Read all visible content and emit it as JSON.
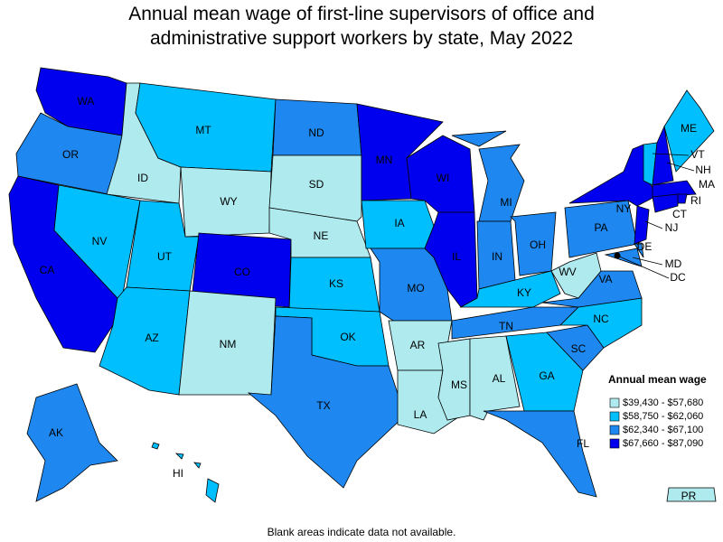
{
  "title": "Annual mean wage of first-line supervisors of office and administrative support workers by state, May 2022",
  "legend": {
    "title": "Annual mean wage",
    "items": [
      {
        "label": "$39,430 - $57,680",
        "color": "#aeeaee"
      },
      {
        "label": "$58,750 - $62,060",
        "color": "#00bfff"
      },
      {
        "label": "$62,340 - $67,100",
        "color": "#1e88f0"
      },
      {
        "label": "$67,660 - $87,090",
        "color": "#0000ee"
      }
    ]
  },
  "states": [
    {
      "abbr": "WA",
      "color": "#0000ee"
    },
    {
      "abbr": "OR",
      "color": "#1e88f0"
    },
    {
      "abbr": "CA",
      "color": "#0000ee"
    },
    {
      "abbr": "ID",
      "color": "#aeeaee"
    },
    {
      "abbr": "NV",
      "color": "#00bfff"
    },
    {
      "abbr": "UT",
      "color": "#00bfff"
    },
    {
      "abbr": "AZ",
      "color": "#00bfff"
    },
    {
      "abbr": "MT",
      "color": "#00bfff"
    },
    {
      "abbr": "WY",
      "color": "#aeeaee"
    },
    {
      "abbr": "CO",
      "color": "#0000ee"
    },
    {
      "abbr": "NM",
      "color": "#aeeaee"
    },
    {
      "abbr": "ND",
      "color": "#1e88f0"
    },
    {
      "abbr": "SD",
      "color": "#aeeaee"
    },
    {
      "abbr": "NE",
      "color": "#aeeaee"
    },
    {
      "abbr": "KS",
      "color": "#00bfff"
    },
    {
      "abbr": "OK",
      "color": "#00bfff"
    },
    {
      "abbr": "TX",
      "color": "#1e88f0"
    },
    {
      "abbr": "MN",
      "color": "#0000ee"
    },
    {
      "abbr": "IA",
      "color": "#00bfff"
    },
    {
      "abbr": "MO",
      "color": "#1e88f0"
    },
    {
      "abbr": "AR",
      "color": "#aeeaee"
    },
    {
      "abbr": "LA",
      "color": "#aeeaee"
    },
    {
      "abbr": "WI",
      "color": "#0000ee"
    },
    {
      "abbr": "IL",
      "color": "#0000ee"
    },
    {
      "abbr": "MI",
      "color": "#1e88f0"
    },
    {
      "abbr": "IN",
      "color": "#1e88f0"
    },
    {
      "abbr": "OH",
      "color": "#1e88f0"
    },
    {
      "abbr": "KY",
      "color": "#00bfff"
    },
    {
      "abbr": "TN",
      "color": "#1e88f0"
    },
    {
      "abbr": "MS",
      "color": "#aeeaee"
    },
    {
      "abbr": "AL",
      "color": "#aeeaee"
    },
    {
      "abbr": "GA",
      "color": "#00bfff"
    },
    {
      "abbr": "FL",
      "color": "#1e88f0"
    },
    {
      "abbr": "SC",
      "color": "#1e88f0"
    },
    {
      "abbr": "NC",
      "color": "#00bfff"
    },
    {
      "abbr": "VA",
      "color": "#1e88f0"
    },
    {
      "abbr": "WV",
      "color": "#aeeaee"
    },
    {
      "abbr": "PA",
      "color": "#1e88f0"
    },
    {
      "abbr": "NY",
      "color": "#0000ee"
    },
    {
      "abbr": "VT",
      "color": "#00bfff"
    },
    {
      "abbr": "NH",
      "color": "#0000ee"
    },
    {
      "abbr": "ME",
      "color": "#00bfff"
    },
    {
      "abbr": "MA",
      "color": "#0000ee"
    },
    {
      "abbr": "RI",
      "color": "#0000ee"
    },
    {
      "abbr": "CT",
      "color": "#0000ee"
    },
    {
      "abbr": "NJ",
      "color": "#0000ee"
    },
    {
      "abbr": "DE",
      "color": "#1e88f0"
    },
    {
      "abbr": "MD",
      "color": "#1e88f0"
    },
    {
      "abbr": "DC",
      "color": "#0000ee"
    },
    {
      "abbr": "AK",
      "color": "#1e88f0"
    },
    {
      "abbr": "HI",
      "color": "#00bfff"
    },
    {
      "abbr": "PR",
      "color": "#aeeaee"
    }
  ],
  "footnote": "Blank areas indicate data not available."
}
